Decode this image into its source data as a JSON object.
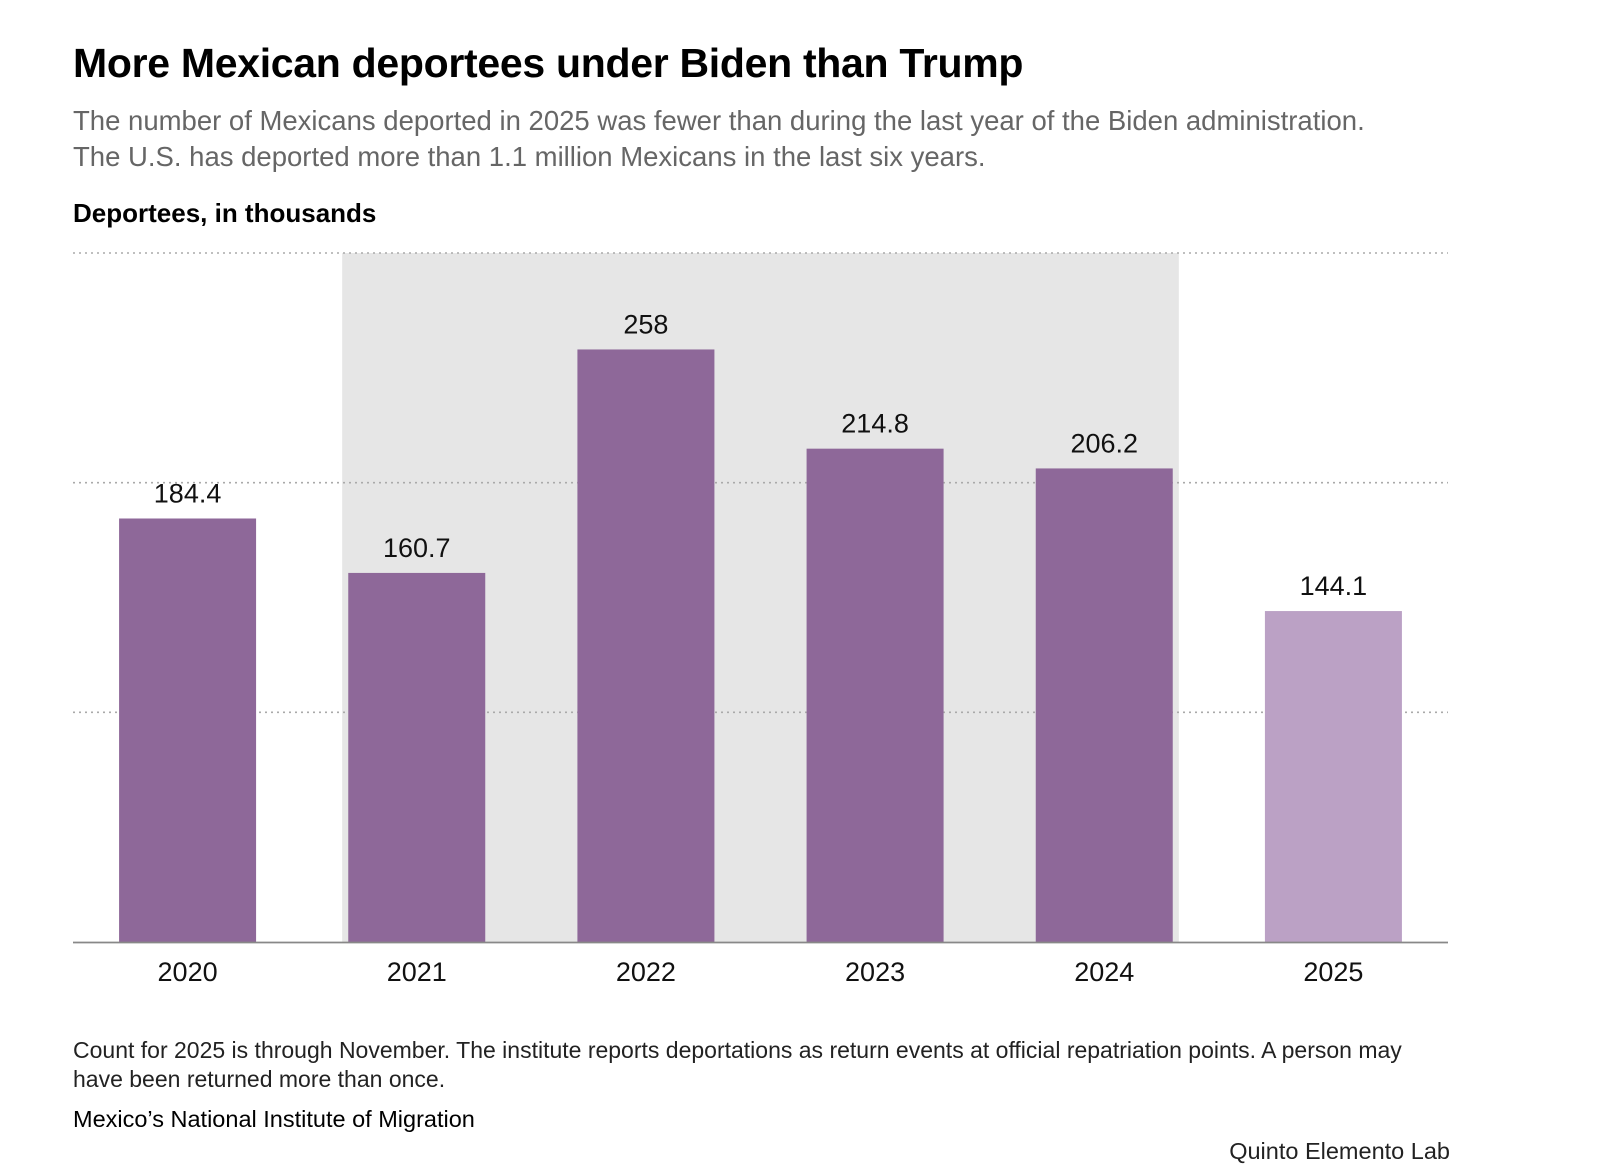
{
  "header": {
    "title": "More Mexican deportees under Biden than Trump",
    "subtitle": "The number of Mexicans deported in 2025 was fewer than during the last year of the Biden administration. The U.S. has deported more than 1.1 million Mexicans in the last six years.",
    "unit_label": "Deportees, in thousands"
  },
  "chart_data": {
    "type": "bar",
    "title": "More Mexican deportees under Biden than Trump",
    "ylabel": "Deportees, in thousands",
    "xlabel": "",
    "categories": [
      "2020",
      "2021",
      "2022",
      "2023",
      "2024",
      "2025"
    ],
    "values": [
      184.4,
      160.7,
      258,
      214.8,
      206.2,
      144.1
    ],
    "value_labels": [
      "184.4",
      "160.7",
      "258",
      "214.8",
      "206.2",
      "144.1"
    ],
    "ylim": [
      0,
      300
    ],
    "gridlines": [
      100,
      200,
      300
    ],
    "grid": true,
    "highlight_band": {
      "from_category": "2021",
      "to_category": "2024",
      "meaning": "Biden administration years"
    },
    "partial_category": "2025",
    "colors": {
      "bar": "#8e6899",
      "bar_partial": "#bba1c5",
      "band": "#e6e6e6",
      "grid": "#aaaaaa",
      "axis": "#888888"
    }
  },
  "footer": {
    "note": "Count for 2025 is through November. The institute reports deportations as return events at official repatriation points. A person may have been returned more than once.",
    "source": "Mexico’s National Institute of Migration",
    "credit": "Quinto Elemento Lab"
  }
}
